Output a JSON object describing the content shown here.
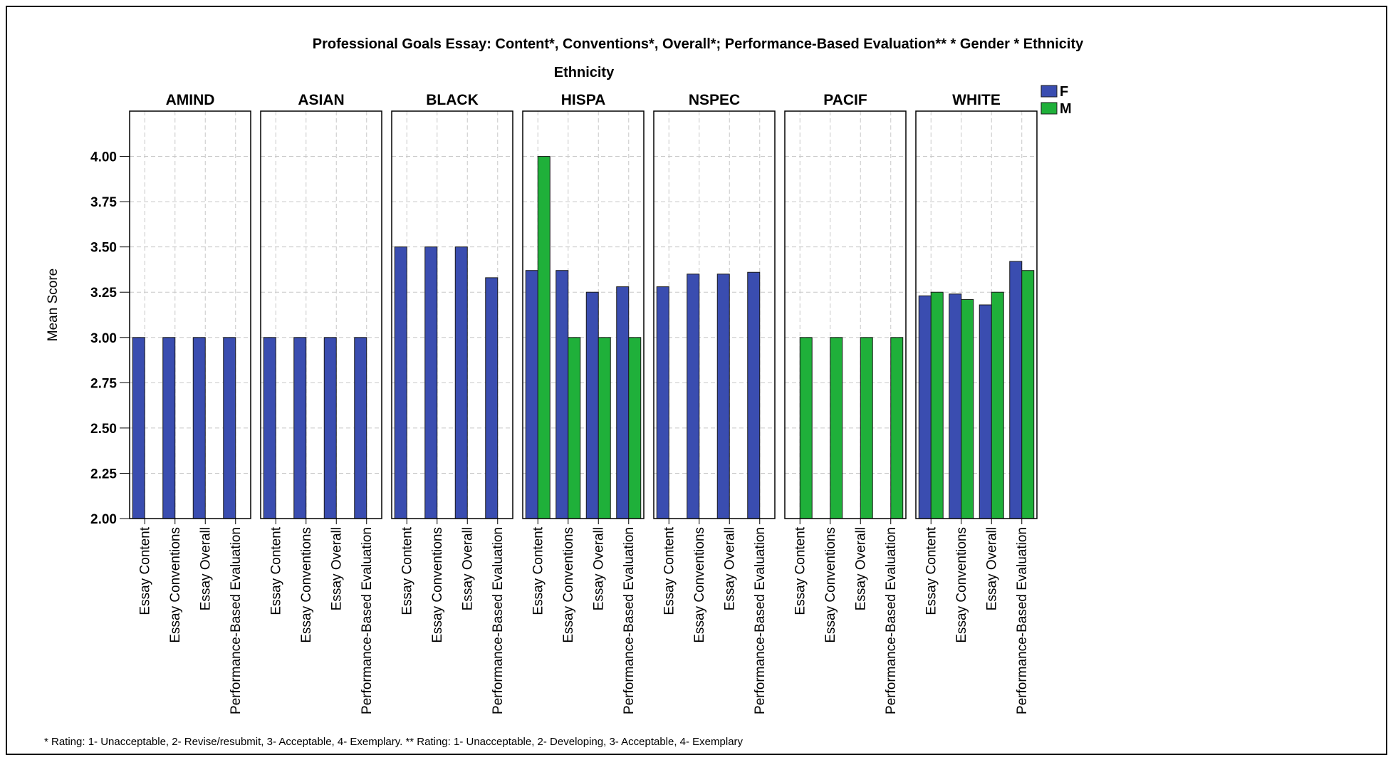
{
  "chart_data": {
    "type": "bar",
    "title": "Professional Goals Essay: Content*, Conventions*, Overall*; Performance-Based Evaluation** * Gender * Ethnicity",
    "facet_title": "Ethnicity",
    "ylabel": "Mean Score",
    "ylim": [
      2.0,
      4.25
    ],
    "yticks": [
      "2.00",
      "2.25",
      "2.50",
      "2.75",
      "3.00",
      "3.25",
      "3.50",
      "3.75",
      "4.00"
    ],
    "categories": [
      "Essay Content",
      "Essay Conventions",
      "Essay Overall",
      "Performance-Based Evaluation"
    ],
    "series_names": [
      "F",
      "M"
    ],
    "colors": {
      "F": "#3a4db0",
      "M": "#1fb03a"
    },
    "grid": true,
    "legend_position": "top-right",
    "facets": [
      {
        "name": "AMIND",
        "F": [
          3.0,
          3.0,
          3.0,
          3.0
        ],
        "M": [
          null,
          null,
          null,
          null
        ]
      },
      {
        "name": "ASIAN",
        "F": [
          3.0,
          3.0,
          3.0,
          3.0
        ],
        "M": [
          null,
          null,
          null,
          null
        ]
      },
      {
        "name": "BLACK",
        "F": [
          3.5,
          3.5,
          3.5,
          3.33
        ],
        "M": [
          null,
          null,
          null,
          null
        ]
      },
      {
        "name": "HISPA",
        "F": [
          3.37,
          3.37,
          3.25,
          3.28
        ],
        "M": [
          4.0,
          3.0,
          3.0,
          3.0
        ]
      },
      {
        "name": "NSPEC",
        "F": [
          3.28,
          3.35,
          3.35,
          3.36
        ],
        "M": [
          null,
          null,
          null,
          null
        ]
      },
      {
        "name": "PACIF",
        "F": [
          null,
          null,
          null,
          null
        ],
        "M": [
          3.0,
          3.0,
          3.0,
          3.0
        ]
      },
      {
        "name": "WHITE",
        "F": [
          3.23,
          3.24,
          3.18,
          3.42
        ],
        "M": [
          3.25,
          3.21,
          3.25,
          3.37
        ]
      }
    ]
  },
  "footnote": "* Rating: 1- Unacceptable, 2- Revise/resubmit, 3- Acceptable, 4- Exemplary. ** Rating: 1- Unacceptable, 2- Developing, 3- Acceptable, 4- Exemplary"
}
